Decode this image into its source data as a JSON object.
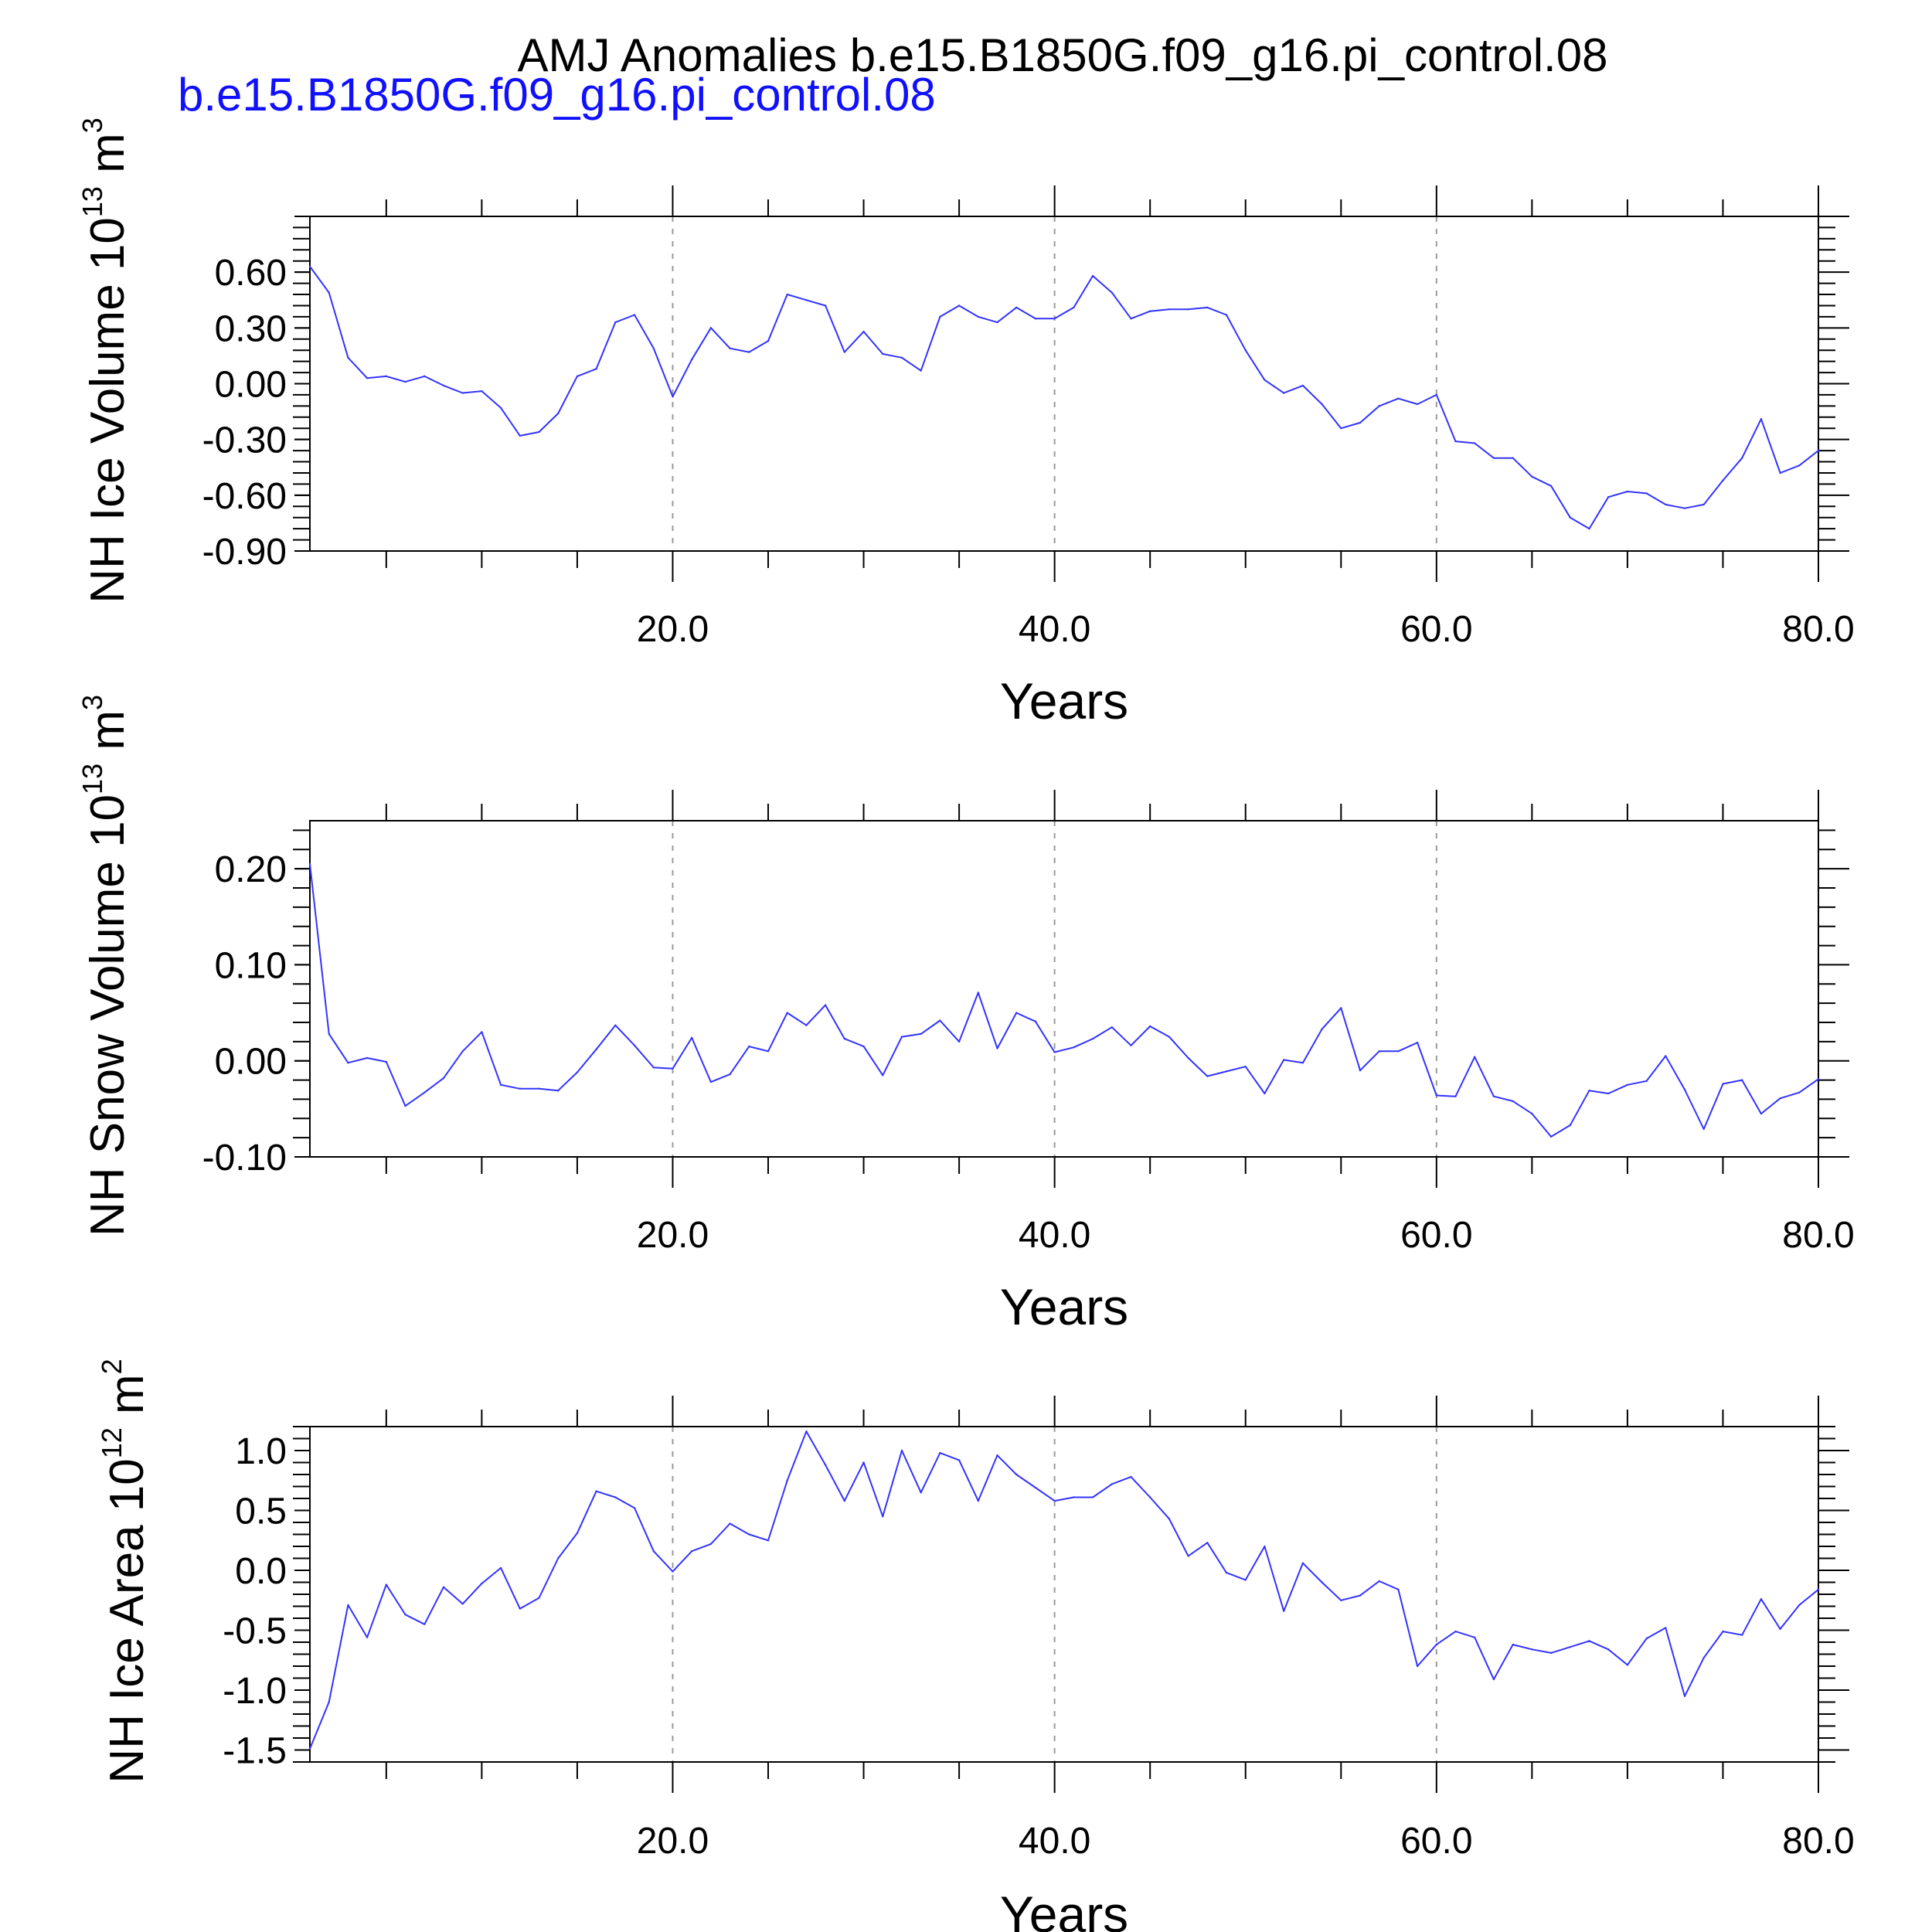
{
  "title": "AMJ Anomalies b.e15.B1850G.f09_g16.pi_control.08",
  "subtitle": "b.e15.B1850G.f09_g16.pi_control.08",
  "colors": {
    "series": "#3333ff",
    "subtitle": "#1010ff",
    "axes": "#000000",
    "grid": "#9a9a9a"
  },
  "chart_data": [
    {
      "type": "line",
      "ylabel": {
        "base": "NH Ice Volume 10",
        "exponent": "13",
        "unit": " m",
        "unit_exponent": "3"
      },
      "xlabel": "Years",
      "xlim": [
        1,
        80
      ],
      "ylim": [
        -0.9,
        0.9
      ],
      "xticks": [
        20,
        40,
        60,
        80
      ],
      "xtick_labels": [
        "20.0",
        "40.0",
        "60.0",
        "80.0"
      ],
      "yticks": [
        -0.9,
        -0.6,
        -0.3,
        0.0,
        0.3,
        0.6
      ],
      "ytick_labels": [
        "-0.90",
        "-0.60",
        "-0.30",
        "0.00",
        "0.30",
        "0.60"
      ],
      "grid_x": true,
      "x": [
        1,
        2,
        3,
        4,
        5,
        6,
        7,
        8,
        9,
        10,
        11,
        12,
        13,
        14,
        15,
        16,
        17,
        18,
        19,
        20,
        21,
        22,
        23,
        24,
        25,
        26,
        27,
        28,
        29,
        30,
        31,
        32,
        33,
        34,
        35,
        36,
        37,
        38,
        39,
        40,
        41,
        42,
        43,
        44,
        45,
        46,
        47,
        48,
        49,
        50,
        51,
        52,
        53,
        54,
        55,
        56,
        57,
        58,
        59,
        60,
        61,
        62,
        63,
        64,
        65,
        66,
        67,
        68,
        69,
        70,
        71,
        72,
        73,
        74,
        75,
        76,
        77,
        78,
        79,
        80
      ],
      "values": [
        0.63,
        0.49,
        0.14,
        0.03,
        0.04,
        0.01,
        0.04,
        -0.01,
        -0.05,
        -0.04,
        -0.13,
        -0.28,
        -0.26,
        -0.16,
        0.04,
        0.08,
        0.33,
        0.37,
        0.19,
        -0.07,
        0.13,
        0.3,
        0.19,
        0.17,
        0.23,
        0.48,
        0.45,
        0.42,
        0.17,
        0.28,
        0.16,
        0.14,
        0.07,
        0.36,
        0.42,
        0.36,
        0.33,
        0.41,
        0.35,
        0.35,
        0.41,
        0.58,
        0.49,
        0.35,
        0.39,
        0.4,
        0.4,
        0.41,
        0.37,
        0.18,
        0.02,
        -0.05,
        -0.01,
        -0.11,
        -0.24,
        -0.21,
        -0.12,
        -0.08,
        -0.11,
        -0.06,
        -0.31,
        -0.32,
        -0.4,
        -0.4,
        -0.5,
        -0.55,
        -0.72,
        -0.78,
        -0.61,
        -0.58,
        -0.59,
        -0.65,
        -0.67,
        -0.65,
        -0.52,
        -0.4,
        -0.19,
        -0.48,
        -0.44,
        -0.36
      ]
    },
    {
      "type": "line",
      "ylabel": {
        "base": "NH Snow Volume 10",
        "exponent": "13",
        "unit": " m",
        "unit_exponent": "3"
      },
      "xlabel": "Years",
      "xlim": [
        1,
        80
      ],
      "ylim": [
        -0.1,
        0.25
      ],
      "xticks": [
        20,
        40,
        60,
        80
      ],
      "xtick_labels": [
        "20.0",
        "40.0",
        "60.0",
        "80.0"
      ],
      "yticks": [
        -0.1,
        0.0,
        0.1,
        0.2
      ],
      "ytick_labels": [
        "-0.10",
        "0.00",
        "0.10",
        "0.20"
      ],
      "grid_x": true,
      "x": [
        1,
        2,
        3,
        4,
        5,
        6,
        7,
        8,
        9,
        10,
        11,
        12,
        13,
        14,
        15,
        16,
        17,
        18,
        19,
        20,
        21,
        22,
        23,
        24,
        25,
        26,
        27,
        28,
        29,
        30,
        31,
        32,
        33,
        34,
        35,
        36,
        37,
        38,
        39,
        40,
        41,
        42,
        43,
        44,
        45,
        46,
        47,
        48,
        49,
        50,
        51,
        52,
        53,
        54,
        55,
        56,
        57,
        58,
        59,
        60,
        61,
        62,
        63,
        64,
        65,
        66,
        67,
        68,
        69,
        70,
        71,
        72,
        73,
        74,
        75,
        76,
        77,
        78,
        79,
        80
      ],
      "values": [
        0.205,
        0.028,
        -0.002,
        0.003,
        -0.001,
        -0.047,
        -0.033,
        -0.018,
        0.01,
        0.03,
        -0.025,
        -0.029,
        -0.029,
        -0.031,
        -0.012,
        0.012,
        0.037,
        0.016,
        -0.007,
        -0.008,
        0.024,
        -0.022,
        -0.014,
        0.015,
        0.01,
        0.05,
        0.037,
        0.058,
        0.023,
        0.015,
        -0.015,
        0.025,
        0.028,
        0.042,
        0.02,
        0.071,
        0.013,
        0.05,
        0.041,
        0.009,
        0.014,
        0.023,
        0.035,
        0.016,
        0.036,
        0.025,
        0.003,
        -0.016,
        -0.011,
        -0.006,
        -0.034,
        0.001,
        -0.002,
        0.033,
        0.055,
        -0.01,
        0.01,
        0.01,
        0.019,
        -0.036,
        -0.037,
        0.004,
        -0.037,
        -0.042,
        -0.055,
        -0.079,
        -0.067,
        -0.031,
        -0.034,
        -0.025,
        -0.021,
        0.005,
        -0.03,
        -0.071,
        -0.024,
        -0.02,
        -0.055,
        -0.039,
        -0.033,
        -0.019
      ]
    },
    {
      "type": "line",
      "ylabel": {
        "base": "NH Ice Area 10",
        "exponent": "12",
        "unit": " m",
        "unit_exponent": "2"
      },
      "xlabel": "Years",
      "xlim": [
        1,
        80
      ],
      "ylim": [
        -1.6,
        1.2
      ],
      "xticks": [
        20,
        40,
        60,
        80
      ],
      "xtick_labels": [
        "20.0",
        "40.0",
        "60.0",
        "80.0"
      ],
      "yticks": [
        -1.5,
        -1.0,
        -0.5,
        0.0,
        0.5,
        1.0
      ],
      "ytick_labels": [
        "-1.5",
        "-1.0",
        "-0.5",
        "0.0",
        "0.5",
        "1.0"
      ],
      "grid_x": true,
      "x": [
        1,
        2,
        3,
        4,
        5,
        6,
        7,
        8,
        9,
        10,
        11,
        12,
        13,
        14,
        15,
        16,
        17,
        18,
        19,
        20,
        21,
        22,
        23,
        24,
        25,
        26,
        27,
        28,
        29,
        30,
        31,
        32,
        33,
        34,
        35,
        36,
        37,
        38,
        39,
        40,
        41,
        42,
        43,
        44,
        45,
        46,
        47,
        48,
        49,
        50,
        51,
        52,
        53,
        54,
        55,
        56,
        57,
        58,
        59,
        60,
        61,
        62,
        63,
        64,
        65,
        66,
        67,
        68,
        69,
        70,
        71,
        72,
        73,
        74,
        75,
        76,
        77,
        78,
        79,
        80
      ],
      "values": [
        -1.49,
        -1.1,
        -0.29,
        -0.56,
        -0.12,
        -0.37,
        -0.45,
        -0.14,
        -0.28,
        -0.11,
        0.02,
        -0.32,
        -0.23,
        0.1,
        0.31,
        0.66,
        0.61,
        0.52,
        0.16,
        -0.01,
        0.16,
        0.22,
        0.39,
        0.3,
        0.25,
        0.75,
        1.16,
        0.88,
        0.58,
        0.9,
        0.45,
        1.0,
        0.65,
        0.98,
        0.92,
        0.58,
        0.96,
        0.8,
        0.69,
        0.58,
        0.61,
        0.61,
        0.72,
        0.78,
        0.61,
        0.43,
        0.12,
        0.23,
        -0.02,
        -0.08,
        0.2,
        -0.34,
        0.06,
        -0.1,
        -0.25,
        -0.21,
        -0.09,
        -0.16,
        -0.8,
        -0.62,
        -0.51,
        -0.56,
        -0.91,
        -0.62,
        -0.66,
        -0.69,
        -0.64,
        -0.59,
        -0.66,
        -0.79,
        -0.57,
        -0.48,
        -1.05,
        -0.73,
        -0.51,
        -0.54,
        -0.24,
        -0.49,
        -0.29,
        -0.16
      ]
    }
  ]
}
